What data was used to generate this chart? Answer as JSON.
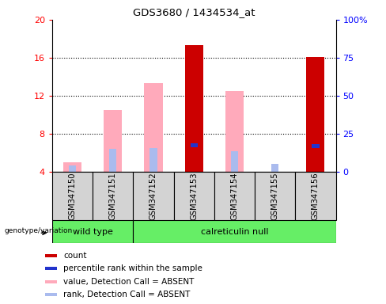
{
  "title": "GDS3680 / 1434534_at",
  "samples": [
    "GSM347150",
    "GSM347151",
    "GSM347152",
    "GSM347153",
    "GSM347154",
    "GSM347155",
    "GSM347156"
  ],
  "ylim_left": [
    4,
    20
  ],
  "ylim_right": [
    0,
    100
  ],
  "yticks_left": [
    4,
    8,
    12,
    16,
    20
  ],
  "yticks_right": [
    0,
    25,
    50,
    75,
    100
  ],
  "ytick_labels_right": [
    "0",
    "25",
    "50",
    "75",
    "100%"
  ],
  "red_bars": [
    null,
    null,
    null,
    17.3,
    null,
    null,
    16.1
  ],
  "blue_bars": [
    null,
    null,
    null,
    6.8,
    null,
    null,
    6.7
  ],
  "pink_bars": [
    5.0,
    10.5,
    13.3,
    null,
    12.5,
    null,
    null
  ],
  "light_blue_bars": [
    4.7,
    6.4,
    6.5,
    null,
    6.2,
    4.8,
    null
  ],
  "red_color": "#cc0000",
  "blue_color": "#2233cc",
  "pink_color": "#ffaabb",
  "light_blue_color": "#aabbee",
  "sample_bg_color": "#d3d3d3",
  "group_bg_color": "#66ee66",
  "legend_items": [
    "count",
    "percentile rank within the sample",
    "value, Detection Call = ABSENT",
    "rank, Detection Call = ABSENT"
  ],
  "legend_colors": [
    "#cc0000",
    "#2233cc",
    "#ffaabb",
    "#aabbee"
  ]
}
